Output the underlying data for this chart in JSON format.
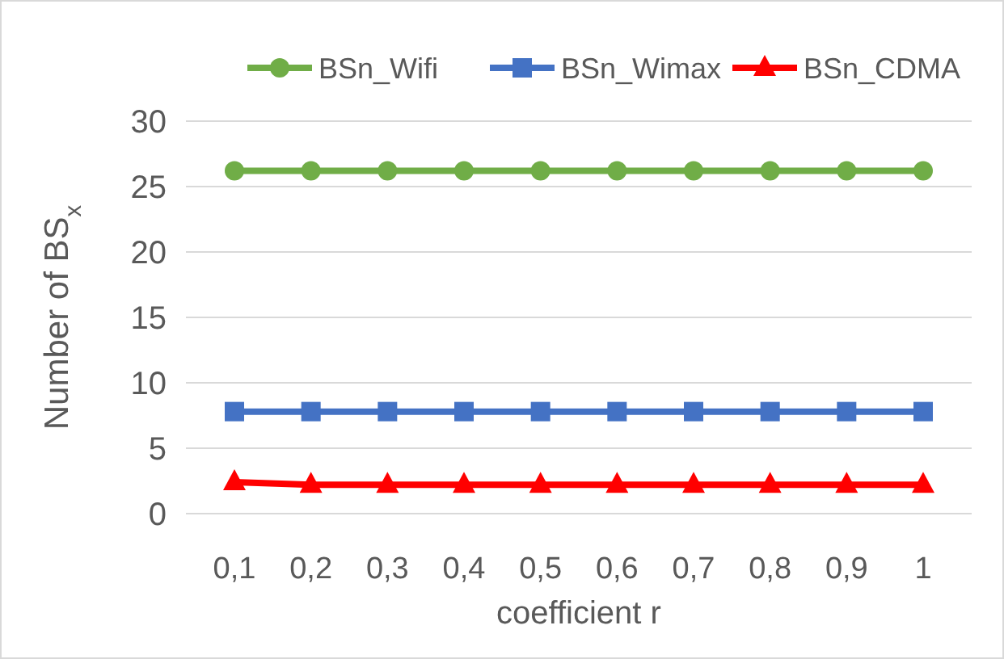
{
  "chart_data": {
    "type": "line",
    "xlabel": "coefficient r",
    "ylabel": "Number of BS$_{x}$",
    "categories": [
      "0,1",
      "0,2",
      "0,3",
      "0,4",
      "0,5",
      "0,6",
      "0,7",
      "0,8",
      "0,9",
      "1"
    ],
    "ylim": [
      0,
      30
    ],
    "yticks": [
      0,
      5,
      10,
      15,
      20,
      25,
      30
    ],
    "grid": "y",
    "legend": "top",
    "series": [
      {
        "name": "BSn_Wifi",
        "color": "#70ad47",
        "marker": "circle",
        "values": [
          26.2,
          26.2,
          26.2,
          26.2,
          26.2,
          26.2,
          26.2,
          26.2,
          26.2,
          26.2
        ]
      },
      {
        "name": "BSn_Wimax",
        "color": "#4472c4",
        "marker": "square",
        "values": [
          7.8,
          7.8,
          7.8,
          7.8,
          7.8,
          7.8,
          7.8,
          7.8,
          7.8,
          7.8
        ]
      },
      {
        "name": "BSn_CDMA",
        "color": "#ff0000",
        "marker": "triangle",
        "values": [
          2.4,
          2.2,
          2.2,
          2.2,
          2.2,
          2.2,
          2.2,
          2.2,
          2.2,
          2.2
        ]
      }
    ]
  }
}
